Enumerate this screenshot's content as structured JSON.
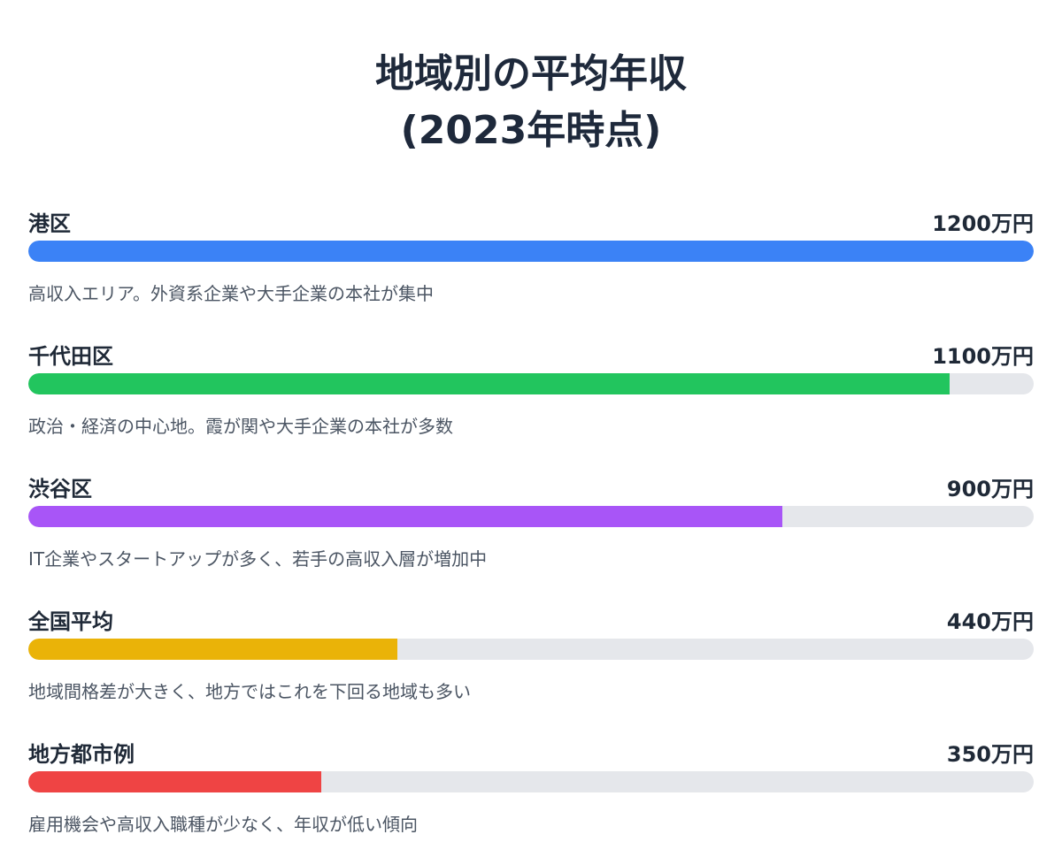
{
  "title_line1": "地域別の平均年収",
  "title_line2": "(2023年時点)",
  "chart_data": {
    "type": "bar",
    "orientation": "horizontal",
    "unit": "万円",
    "max": 1200,
    "categories": [
      "港区",
      "千代田区",
      "渋谷区",
      "全国平均",
      "地方都市例"
    ],
    "values": [
      1200,
      1100,
      900,
      440,
      350
    ],
    "rows": [
      {
        "name": "港区",
        "value": 1200,
        "value_label": "1200万円",
        "color": "#3b82f6",
        "note": "高収入エリア。外資系企業や大手企業の本社が集中"
      },
      {
        "name": "千代田区",
        "value": 1100,
        "value_label": "1100万円",
        "color": "#22c55e",
        "note": "政治・経済の中心地。霞が関や大手企業の本社が多数"
      },
      {
        "name": "渋谷区",
        "value": 900,
        "value_label": "900万円",
        "color": "#a855f7",
        "note": "IT企業やスタートアップが多く、若手の高収入層が増加中"
      },
      {
        "name": "全国平均",
        "value": 440,
        "value_label": "440万円",
        "color": "#eab308",
        "note": "地域間格差が大きく、地方ではこれを下回る地域も多い"
      },
      {
        "name": "地方都市例",
        "value": 350,
        "value_label": "350万円",
        "color": "#ef4444",
        "note": "雇用機会や高収入職種が少なく、年収が低い傾向"
      }
    ],
    "track_color": "#e5e7eb"
  }
}
